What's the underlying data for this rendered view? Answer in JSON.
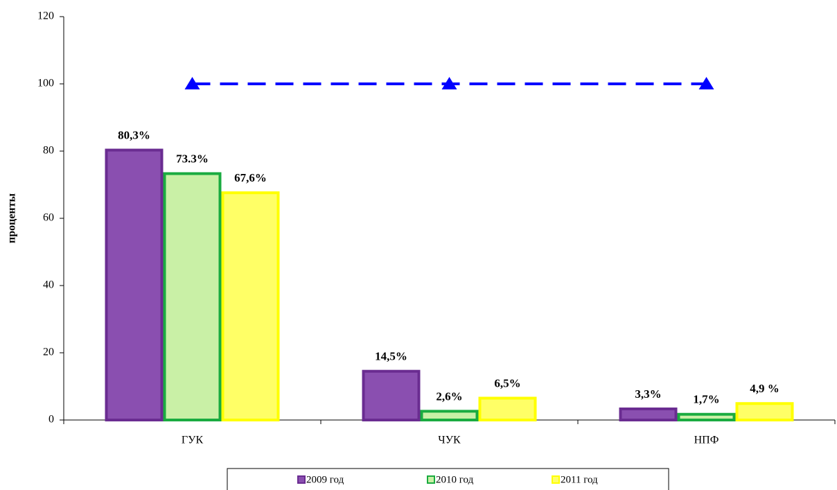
{
  "chart_data": {
    "type": "bar",
    "ylabel": "проценты",
    "categories": [
      "ГУК",
      "ЧУК",
      "НПФ"
    ],
    "series": [
      {
        "name": "2009 год",
        "color": "#8a4fb0",
        "edgecolor": "#6a2c91",
        "values": [
          80.3,
          14.5,
          3.3
        ],
        "value_labels": [
          "80,3%",
          "14,5%",
          "3,3%"
        ]
      },
      {
        "name": "2010 год",
        "color": "#c9f0a6",
        "edgecolor": "#1aab40",
        "values": [
          73.3,
          2.6,
          1.7
        ],
        "value_labels": [
          "73.3%",
          "2,6%",
          "1,7%"
        ]
      },
      {
        "name": "2011 год",
        "color": "#ffff66",
        "edgecolor": "#ffff00",
        "values": [
          67.6,
          6.5,
          4.9
        ],
        "value_labels": [
          "67,6%",
          "6,5%",
          "4,9 %"
        ]
      }
    ],
    "line": {
      "type": "line",
      "color": "#0000ff",
      "values": [
        100,
        100,
        100
      ]
    },
    "ylim": [
      0,
      120
    ],
    "yticks": [
      0,
      20,
      40,
      60,
      80,
      100,
      120
    ]
  }
}
